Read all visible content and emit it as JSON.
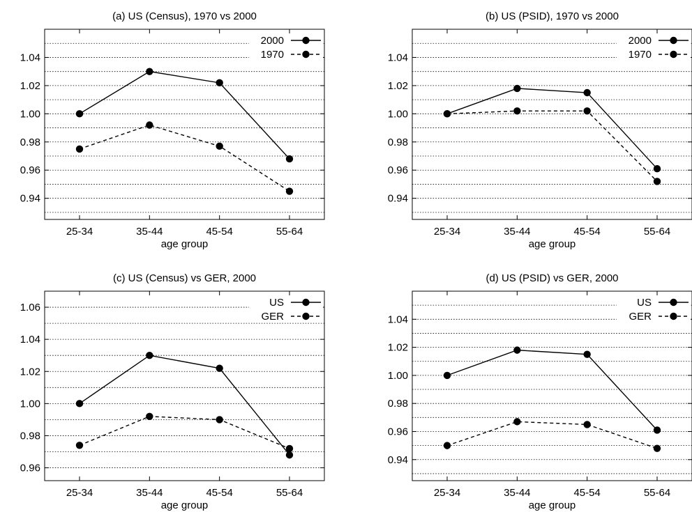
{
  "chart_data": [
    {
      "type": "line",
      "title": "(a) US (Census), 1970 vs 2000",
      "xlabel": "age group",
      "ylabel": "",
      "categories": [
        "25-34",
        "35-44",
        "45-54",
        "55-64"
      ],
      "ylim": [
        0.925,
        1.06
      ],
      "yticks": [
        0.94,
        0.96,
        0.98,
        1.0,
        1.02,
        1.04
      ],
      "ytick_labels": [
        "0.94",
        "0.96",
        "0.98",
        "1.00",
        "1.02",
        "1.04"
      ],
      "grid": true,
      "legend_position": "top-right",
      "series": [
        {
          "name": "2000",
          "style": "solid",
          "values": [
            1.0,
            1.03,
            1.022,
            0.968
          ]
        },
        {
          "name": "1970",
          "style": "dashed",
          "values": [
            0.975,
            0.992,
            0.977,
            0.945
          ]
        }
      ]
    },
    {
      "type": "line",
      "title": "(b) US (PSID), 1970 vs 2000",
      "xlabel": "age group",
      "ylabel": "",
      "categories": [
        "25-34",
        "35-44",
        "45-54",
        "55-64"
      ],
      "ylim": [
        0.925,
        1.06
      ],
      "yticks": [
        0.94,
        0.96,
        0.98,
        1.0,
        1.02,
        1.04
      ],
      "ytick_labels": [
        "0.94",
        "0.96",
        "0.98",
        "1.00",
        "1.02",
        "1.04"
      ],
      "grid": true,
      "legend_position": "top-right",
      "series": [
        {
          "name": "2000",
          "style": "solid",
          "values": [
            1.0,
            1.018,
            1.015,
            0.961
          ]
        },
        {
          "name": "1970",
          "style": "dashed",
          "values": [
            1.0,
            1.002,
            1.002,
            0.952
          ]
        }
      ]
    },
    {
      "type": "line",
      "title": "(c) US (Census) vs GER, 2000",
      "xlabel": "age group",
      "ylabel": "",
      "categories": [
        "25-34",
        "35-44",
        "45-54",
        "55-64"
      ],
      "ylim": [
        0.952,
        1.07
      ],
      "yticks": [
        0.96,
        0.98,
        1.0,
        1.02,
        1.04,
        1.06
      ],
      "ytick_labels": [
        "0.96",
        "0.98",
        "1.00",
        "1.02",
        "1.04",
        "1.06"
      ],
      "grid": true,
      "legend_position": "top-right",
      "series": [
        {
          "name": "US",
          "style": "solid",
          "values": [
            1.0,
            1.03,
            1.022,
            0.968
          ]
        },
        {
          "name": "GER",
          "style": "dashed",
          "values": [
            0.974,
            0.992,
            0.99,
            0.972
          ]
        }
      ]
    },
    {
      "type": "line",
      "title": "(d) US (PSID) vs GER, 2000",
      "xlabel": "age group",
      "ylabel": "",
      "categories": [
        "25-34",
        "35-44",
        "45-54",
        "55-64"
      ],
      "ylim": [
        0.925,
        1.06
      ],
      "yticks": [
        0.94,
        0.96,
        0.98,
        1.0,
        1.02,
        1.04
      ],
      "ytick_labels": [
        "0.94",
        "0.96",
        "0.98",
        "1.00",
        "1.02",
        "1.04"
      ],
      "grid": true,
      "legend_position": "top-right",
      "series": [
        {
          "name": "US",
          "style": "solid",
          "values": [
            1.0,
            1.018,
            1.015,
            0.961
          ]
        },
        {
          "name": "GER",
          "style": "dashed",
          "values": [
            0.95,
            0.967,
            0.965,
            0.948
          ]
        }
      ]
    }
  ]
}
